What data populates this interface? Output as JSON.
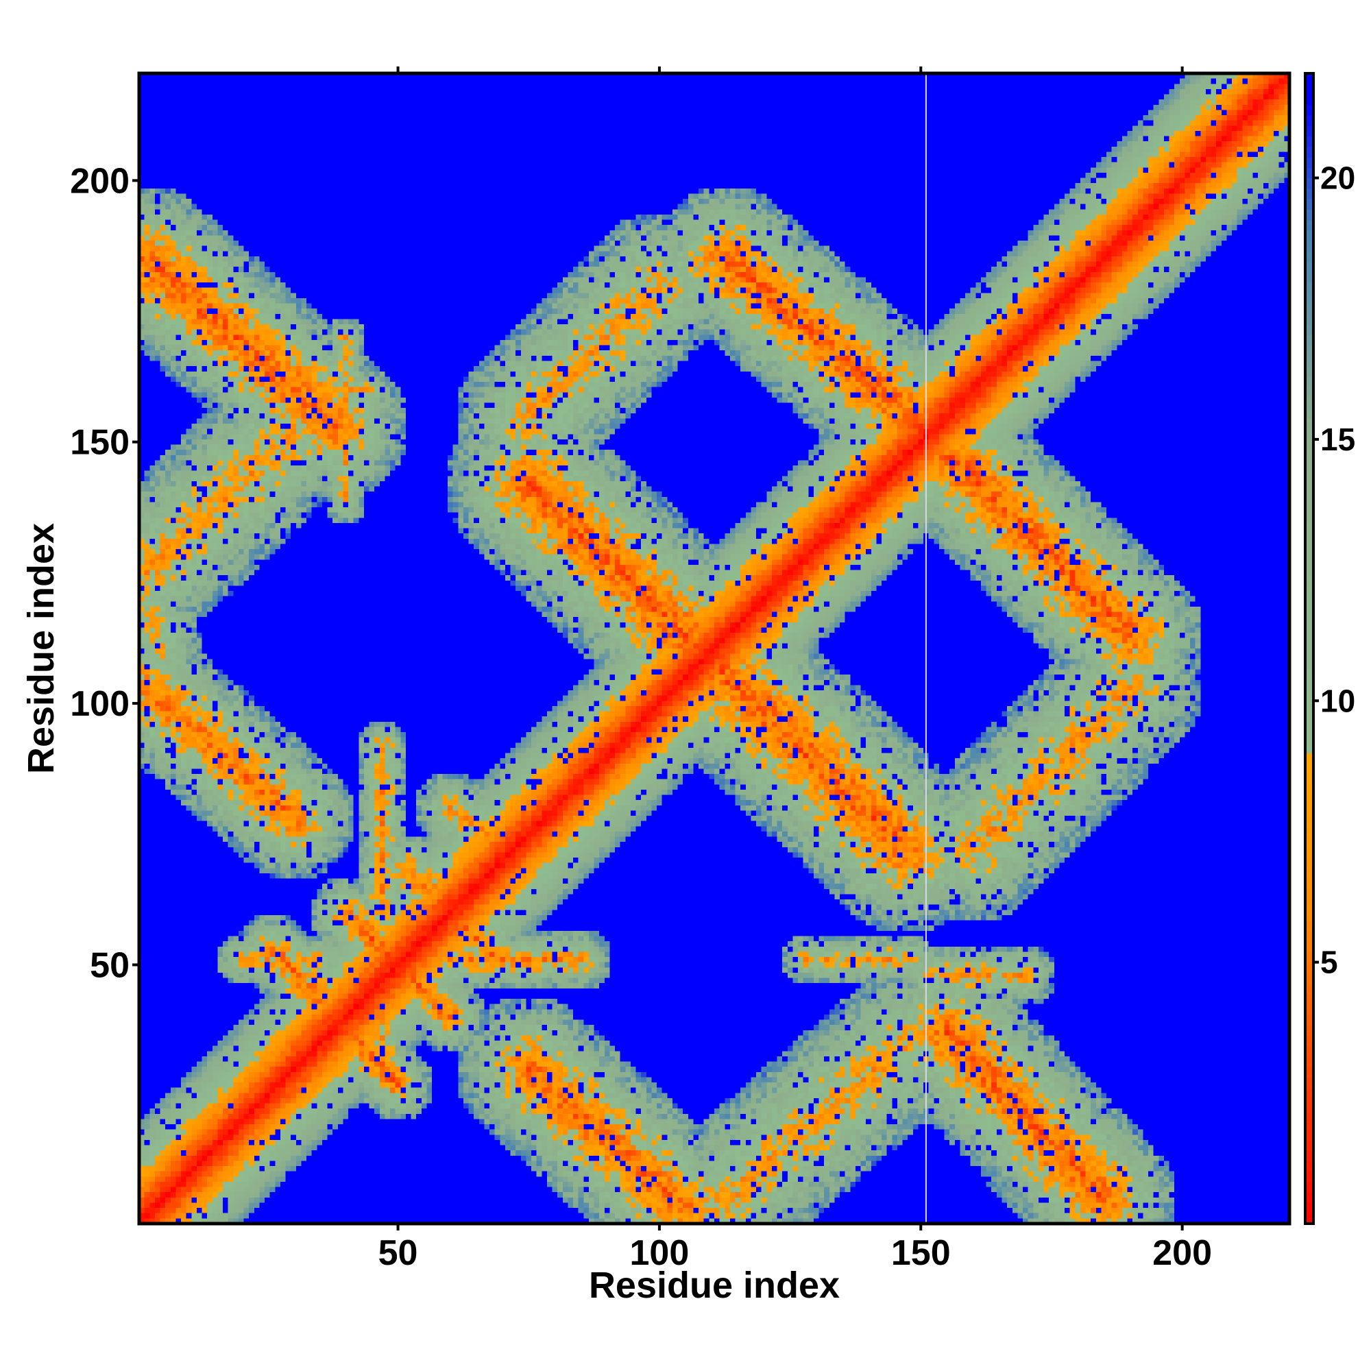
{
  "chart_data": {
    "type": "heatmap",
    "title": "",
    "xlabel": "Residue index",
    "ylabel": "Residue index",
    "xlim": [
      1,
      220
    ],
    "ylim": [
      1,
      220
    ],
    "x_ticks": [
      50,
      100,
      150,
      200
    ],
    "y_ticks": [
      50,
      100,
      150,
      200
    ],
    "colorbar": {
      "ticks": [
        5,
        10,
        15,
        20
      ],
      "range": [
        0,
        22
      ],
      "colors": [
        "#ff0000",
        "#ff8c00",
        "#8fbc8f",
        "#4682b4",
        "#0000ff"
      ]
    },
    "background_value": 22,
    "gap_column_at": 151,
    "features": [
      {
        "kind": "diagonal",
        "from": 1,
        "to": 219,
        "width": 14
      },
      {
        "kind": "band",
        "start": [
          2,
          185
        ],
        "end": [
          38,
          153
        ],
        "width": 14,
        "strength": 1.0
      },
      {
        "kind": "band",
        "start": [
          2,
          103
        ],
        "end": [
          30,
          78
        ],
        "width": 12,
        "strength": 0.85
      },
      {
        "kind": "band",
        "start": [
          30,
          152
        ],
        "end": [
          2,
          125
        ],
        "width": 14,
        "strength": 0.5
      },
      {
        "kind": "band",
        "start": [
          2,
          120
        ],
        "end": [
          5,
          110
        ],
        "width": 8,
        "strength": 0.3
      },
      {
        "kind": "band",
        "start": [
          75,
          142
        ],
        "end": [
          147,
          72
        ],
        "width": 16,
        "strength": 1.0
      },
      {
        "kind": "band",
        "start": [
          113,
          185
        ],
        "end": [
          150,
          153
        ],
        "width": 14,
        "strength": 1.0
      },
      {
        "kind": "band",
        "start": [
          75,
          155
        ],
        "end": [
          100,
          180
        ],
        "width": 14,
        "strength": 0.5
      },
      {
        "kind": "band",
        "start": [
          153,
          150
        ],
        "end": [
          190,
          113
        ],
        "width": 14,
        "strength": 1.0
      },
      {
        "kind": "band",
        "start": [
          160,
          72
        ],
        "end": [
          190,
          103
        ],
        "width": 14,
        "strength": 0.5
      },
      {
        "kind": "band",
        "start": [
          75,
          30
        ],
        "end": [
          105,
          3
        ],
        "width": 14,
        "strength": 0.9
      },
      {
        "kind": "band",
        "start": [
          110,
          3
        ],
        "end": [
          147,
          35
        ],
        "width": 14,
        "strength": 0.5
      },
      {
        "kind": "band",
        "start": [
          155,
          37
        ],
        "end": [
          185,
          5
        ],
        "width": 14,
        "strength": 1.0
      },
      {
        "kind": "band",
        "start": [
          26,
          53
        ],
        "end": [
          50,
          27
        ],
        "width": 7,
        "strength": 0.9
      },
      {
        "kind": "band",
        "start": [
          40,
          60
        ],
        "end": [
          60,
          40
        ],
        "width": 7,
        "strength": 0.9
      },
      {
        "kind": "band",
        "start": [
          52,
          68
        ],
        "end": [
          68,
          52
        ],
        "width": 7,
        "strength": 0.8
      },
      {
        "kind": "band",
        "start": [
          40,
          36
        ],
        "end": [
          50,
          27
        ],
        "width": 5,
        "strength": 0.8
      },
      {
        "kind": "band",
        "start": [
          47,
          92
        ],
        "end": [
          47,
          60
        ],
        "width": 5,
        "strength": 0.6
      },
      {
        "kind": "band",
        "start": [
          47,
          45
        ],
        "end": [
          47,
          28
        ],
        "width": 5,
        "strength": 0.5
      },
      {
        "kind": "band",
        "start": [
          60,
          51
        ],
        "end": [
          85,
          51
        ],
        "width": 6,
        "strength": 0.7
      },
      {
        "kind": "band",
        "start": [
          20,
          51
        ],
        "end": [
          35,
          51
        ],
        "width": 5,
        "strength": 0.5
      },
      {
        "kind": "band",
        "start": [
          60,
          80
        ],
        "end": [
          75,
          70
        ],
        "width": 7,
        "strength": 0.5
      },
      {
        "kind": "band",
        "start": [
          40,
          138
        ],
        "end": [
          40,
          170
        ],
        "width": 4,
        "strength": 0.4
      },
      {
        "kind": "band",
        "start": [
          36,
          160
        ],
        "end": [
          45,
          160
        ],
        "width": 4,
        "strength": 0.4
      },
      {
        "kind": "band",
        "start": [
          128,
          51
        ],
        "end": [
          148,
          51
        ],
        "width": 5,
        "strength": 0.5
      },
      {
        "kind": "band",
        "start": [
          152,
          48
        ],
        "end": [
          170,
          48
        ],
        "width": 6,
        "strength": 0.5
      }
    ]
  }
}
